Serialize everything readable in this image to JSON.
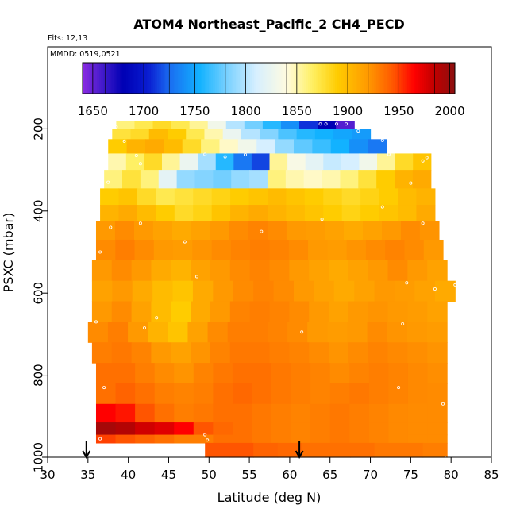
{
  "chart_data": {
    "type": "heatmap",
    "title": "ATOM4 Northeast_Pacific_2 CH4_PECD",
    "flights_label": "Flts: 12,13",
    "mmdd_label": "MMDD: 0519,0521",
    "xlabel": "Latitude (deg N)",
    "ylabel": "PSXC (mbar)",
    "xlim": [
      30,
      85
    ],
    "ylim": [
      1000,
      0
    ],
    "x_ticks": [
      30,
      35,
      40,
      45,
      50,
      55,
      60,
      65,
      70,
      75,
      80,
      85
    ],
    "y_ticks": [
      200,
      400,
      600,
      800,
      1000
    ],
    "grid": false,
    "colorbar": {
      "min": 1640,
      "max": 2005,
      "ticks": [
        1650,
        1700,
        1750,
        1800,
        1850,
        1900,
        1950,
        2000
      ],
      "stops": [
        {
          "v": 1640,
          "c": "#8a2be2"
        },
        {
          "v": 1662,
          "c": "#3a18c8"
        },
        {
          "v": 1680,
          "c": "#0000b4"
        },
        {
          "v": 1705,
          "c": "#0a1ed2"
        },
        {
          "v": 1725,
          "c": "#1a6cf0"
        },
        {
          "v": 1755,
          "c": "#12b2ff"
        },
        {
          "v": 1780,
          "c": "#73cfff"
        },
        {
          "v": 1810,
          "c": "#d6efff"
        },
        {
          "v": 1840,
          "c": "#fffbe0"
        },
        {
          "v": 1865,
          "c": "#fff064"
        },
        {
          "v": 1890,
          "c": "#ffcc00"
        },
        {
          "v": 1920,
          "c": "#ff9900"
        },
        {
          "v": 1945,
          "c": "#ff5500"
        },
        {
          "v": 1965,
          "c": "#ff0000"
        },
        {
          "v": 1985,
          "c": "#c00000"
        },
        {
          "v": 2005,
          "c": "#8b1010"
        }
      ]
    },
    "arrow_latitudes": [
      34.8,
      61.2
    ],
    "layers": [
      {
        "p": [
          180,
          200
        ],
        "lat": [
          38.5,
          68
        ],
        "v": [
          1860,
          1870,
          1880,
          1870,
          1855,
          1830,
          1800,
          1780,
          1760,
          1740,
          1710,
          1680,
          1655
        ]
      },
      {
        "p": [
          200,
          225
        ],
        "lat": [
          38,
          70
        ],
        "v": [
          1875,
          1880,
          1900,
          1890,
          1870,
          1850,
          1825,
          1800,
          1785,
          1770,
          1760,
          1755,
          1750,
          1745
        ]
      },
      {
        "p": [
          225,
          260
        ],
        "lat": [
          37.5,
          72
        ],
        "v": [
          1890,
          1905,
          1910,
          1900,
          1880,
          1860,
          1845,
          1830,
          1810,
          1790,
          1775,
          1765,
          1755,
          1740,
          1730
        ]
      },
      {
        "p": [
          260,
          300
        ],
        "lat": [
          37.5,
          77.5
        ],
        "v": [
          1850,
          1865,
          1880,
          1855,
          1825,
          1795,
          1760,
          1730,
          1715,
          1855,
          1835,
          1820,
          1805,
          1810,
          1830,
          1855,
          1880,
          1895
        ]
      },
      {
        "p": [
          300,
          345
        ],
        "lat": [
          37,
          77.5
        ],
        "v": [
          1860,
          1875,
          1860,
          1820,
          1790,
          1785,
          1780,
          1790,
          1795,
          1860,
          1850,
          1845,
          1850,
          1860,
          1875,
          1890,
          1905,
          1910
        ]
      },
      {
        "p": [
          345,
          385
        ],
        "lat": [
          36.5,
          78
        ],
        "v": [
          1890,
          1895,
          1880,
          1870,
          1875,
          1880,
          1885,
          1890,
          1895,
          1900,
          1895,
          1890,
          1885,
          1880,
          1885,
          1890,
          1900,
          1905
        ]
      },
      {
        "p": [
          385,
          425
        ],
        "lat": [
          36.5,
          78
        ],
        "v": [
          1905,
          1910,
          1900,
          1890,
          1880,
          1885,
          1895,
          1905,
          1910,
          1905,
          1900,
          1895,
          1890,
          1885,
          1890,
          1895,
          1900,
          1910
        ]
      },
      {
        "p": [
          425,
          470
        ],
        "lat": [
          36,
          78.5
        ],
        "v": [
          1920,
          1925,
          1920,
          1915,
          1910,
          1915,
          1920,
          1925,
          1928,
          1925,
          1920,
          1918,
          1915,
          1910,
          1915,
          1920,
          1925,
          1922
        ]
      },
      {
        "p": [
          470,
          520
        ],
        "lat": [
          36,
          79
        ],
        "v": [
          1925,
          1930,
          1925,
          1920,
          1918,
          1922,
          1925,
          1928,
          1930,
          1928,
          1925,
          1920,
          1918,
          1922,
          1925,
          1928,
          1925,
          1920
        ]
      },
      {
        "p": [
          520,
          570
        ],
        "lat": [
          35.5,
          79.5
        ],
        "v": [
          1920,
          1925,
          1920,
          1910,
          1905,
          1915,
          1920,
          1925,
          1928,
          1925,
          1920,
          1915,
          1910,
          1915,
          1920,
          1925,
          1920,
          1915
        ]
      },
      {
        "p": [
          570,
          620
        ],
        "lat": [
          35.5,
          80.5
        ],
        "v": [
          1915,
          1920,
          1910,
          1900,
          1895,
          1910,
          1920,
          1925,
          1928,
          1925,
          1920,
          1915,
          1910,
          1915,
          1920,
          1918,
          1915,
          1910
        ]
      },
      {
        "p": [
          620,
          670
        ],
        "lat": [
          35.5,
          79.5
        ],
        "v": [
          1920,
          1925,
          1915,
          1900,
          1890,
          1910,
          1920,
          1928,
          1930,
          1928,
          1925,
          1920,
          1915,
          1920,
          1922,
          1920,
          1918,
          1915
        ]
      },
      {
        "p": [
          670,
          720
        ],
        "lat": [
          35,
          79.5
        ],
        "v": [
          1925,
          1930,
          1920,
          1905,
          1895,
          1915,
          1925,
          1930,
          1930,
          1928,
          1925,
          1920,
          1918,
          1920,
          1925,
          1922,
          1920,
          1918
        ]
      },
      {
        "p": [
          720,
          770
        ],
        "lat": [
          35.5,
          79.5
        ],
        "v": [
          1930,
          1932,
          1928,
          1920,
          1915,
          1922,
          1928,
          1932,
          1932,
          1930,
          1928,
          1925,
          1922,
          1925,
          1928,
          1926,
          1924,
          1922
        ]
      },
      {
        "p": [
          770,
          820
        ],
        "lat": [
          36,
          79.5
        ],
        "v": [
          1935,
          1935,
          1930,
          1925,
          1922,
          1928,
          1932,
          1935,
          1935,
          1932,
          1930,
          1928,
          1925,
          1928,
          1930,
          1928,
          1926,
          1924
        ]
      },
      {
        "p": [
          820,
          870
        ],
        "lat": [
          36,
          79.5
        ],
        "v": [
          1935,
          1940,
          1935,
          1930,
          1928,
          1930,
          1935,
          1938,
          1935,
          1932,
          1930,
          1928,
          1930,
          1932,
          1930,
          1928,
          1926,
          1925
        ]
      },
      {
        "p": [
          870,
          915
        ],
        "lat": [
          36,
          79.5
        ],
        "v": [
          1965,
          1960,
          1945,
          1935,
          1930,
          1932,
          1935,
          1935,
          1932,
          1930,
          1928,
          1930,
          1932,
          1930,
          1928,
          1926,
          1925,
          1925
        ]
      },
      {
        "p": [
          915,
          945
        ],
        "lat": [
          36,
          79.5
        ],
        "v": [
          1995,
          1990,
          1980,
          1975,
          1965,
          1945,
          1938,
          1935,
          1932,
          1930,
          1928,
          1930,
          1932,
          1930,
          1928,
          1926,
          1925,
          1925
        ]
      },
      {
        "p": [
          945,
          965
        ],
        "lat": [
          36,
          79.5
        ],
        "v": [
          1950,
          1945,
          1940,
          1935,
          1930,
          1930,
          1935,
          1935,
          1932,
          1930,
          1928,
          1930,
          1932,
          1930,
          1928,
          1926,
          1925,
          1925
        ]
      },
      {
        "p": [
          965,
          1000
        ],
        "lat": [
          49.5,
          79.5
        ],
        "v": [
          1945,
          1945,
          1940,
          1938,
          1935,
          1935,
          1935,
          1932,
          1932,
          1930
        ]
      }
    ],
    "samples": [
      [
        38.5,
        195
      ],
      [
        39.5,
        230
      ],
      [
        41,
        265
      ],
      [
        41.5,
        285
      ],
      [
        63.8,
        188
      ],
      [
        64.5,
        188
      ],
      [
        65.8,
        188
      ],
      [
        67,
        188
      ],
      [
        68.5,
        205
      ],
      [
        71.5,
        228
      ],
      [
        52,
        268
      ],
      [
        49.5,
        262
      ],
      [
        54.5,
        263
      ],
      [
        72.3,
        262
      ],
      [
        77,
        270
      ],
      [
        76.5,
        278
      ],
      [
        75,
        332
      ],
      [
        71.5,
        390
      ],
      [
        37.5,
        330
      ],
      [
        41.5,
        430
      ],
      [
        37.8,
        440
      ],
      [
        76.5,
        430
      ],
      [
        47,
        475
      ],
      [
        36.5,
        500
      ],
      [
        56.5,
        450
      ],
      [
        64,
        420
      ],
      [
        48.5,
        560
      ],
      [
        74.5,
        575
      ],
      [
        78,
        590
      ],
      [
        80.5,
        580
      ],
      [
        43.5,
        660
      ],
      [
        42,
        685
      ],
      [
        36,
        670
      ],
      [
        61.5,
        695
      ],
      [
        74,
        675
      ],
      [
        37,
        830
      ],
      [
        73.5,
        830
      ],
      [
        79,
        870
      ],
      [
        49.5,
        945
      ],
      [
        36.5,
        955
      ],
      [
        49.8,
        958
      ],
      [
        79.5,
        1000
      ]
    ]
  }
}
